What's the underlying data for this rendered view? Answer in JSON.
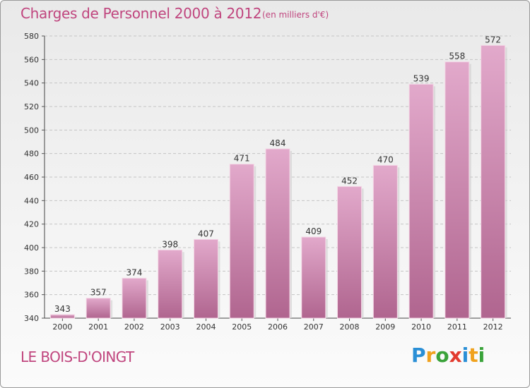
{
  "title": "Charges de Personnel 2000 à 2012",
  "subtitle": "(en milliers d'€)",
  "commune": "LE BOIS-D'OINGT",
  "logo": {
    "letters": [
      "P",
      "r",
      "o",
      "x",
      "i",
      "t",
      "i"
    ],
    "colors": [
      "#2a8fd6",
      "#f0a21e",
      "#3aa33a",
      "#e23b2f",
      "#2a8fd6",
      "#f0a21e",
      "#3aa33a"
    ]
  },
  "colors": {
    "bar_top": "#e2a9cb",
    "bar_bottom": "#b0658f",
    "title": "#c0457e"
  },
  "chart_data": {
    "type": "bar",
    "categories": [
      "2000",
      "2001",
      "2002",
      "2003",
      "2004",
      "2005",
      "2006",
      "2007",
      "2008",
      "2009",
      "2010",
      "2011",
      "2012"
    ],
    "values": [
      343,
      357,
      374,
      398,
      407,
      471,
      484,
      409,
      452,
      470,
      539,
      558,
      572
    ],
    "ylim": [
      340,
      580
    ],
    "yticks": [
      340,
      360,
      380,
      400,
      420,
      440,
      460,
      480,
      500,
      520,
      540,
      560,
      580
    ],
    "grid": true,
    "data_labels": true
  }
}
